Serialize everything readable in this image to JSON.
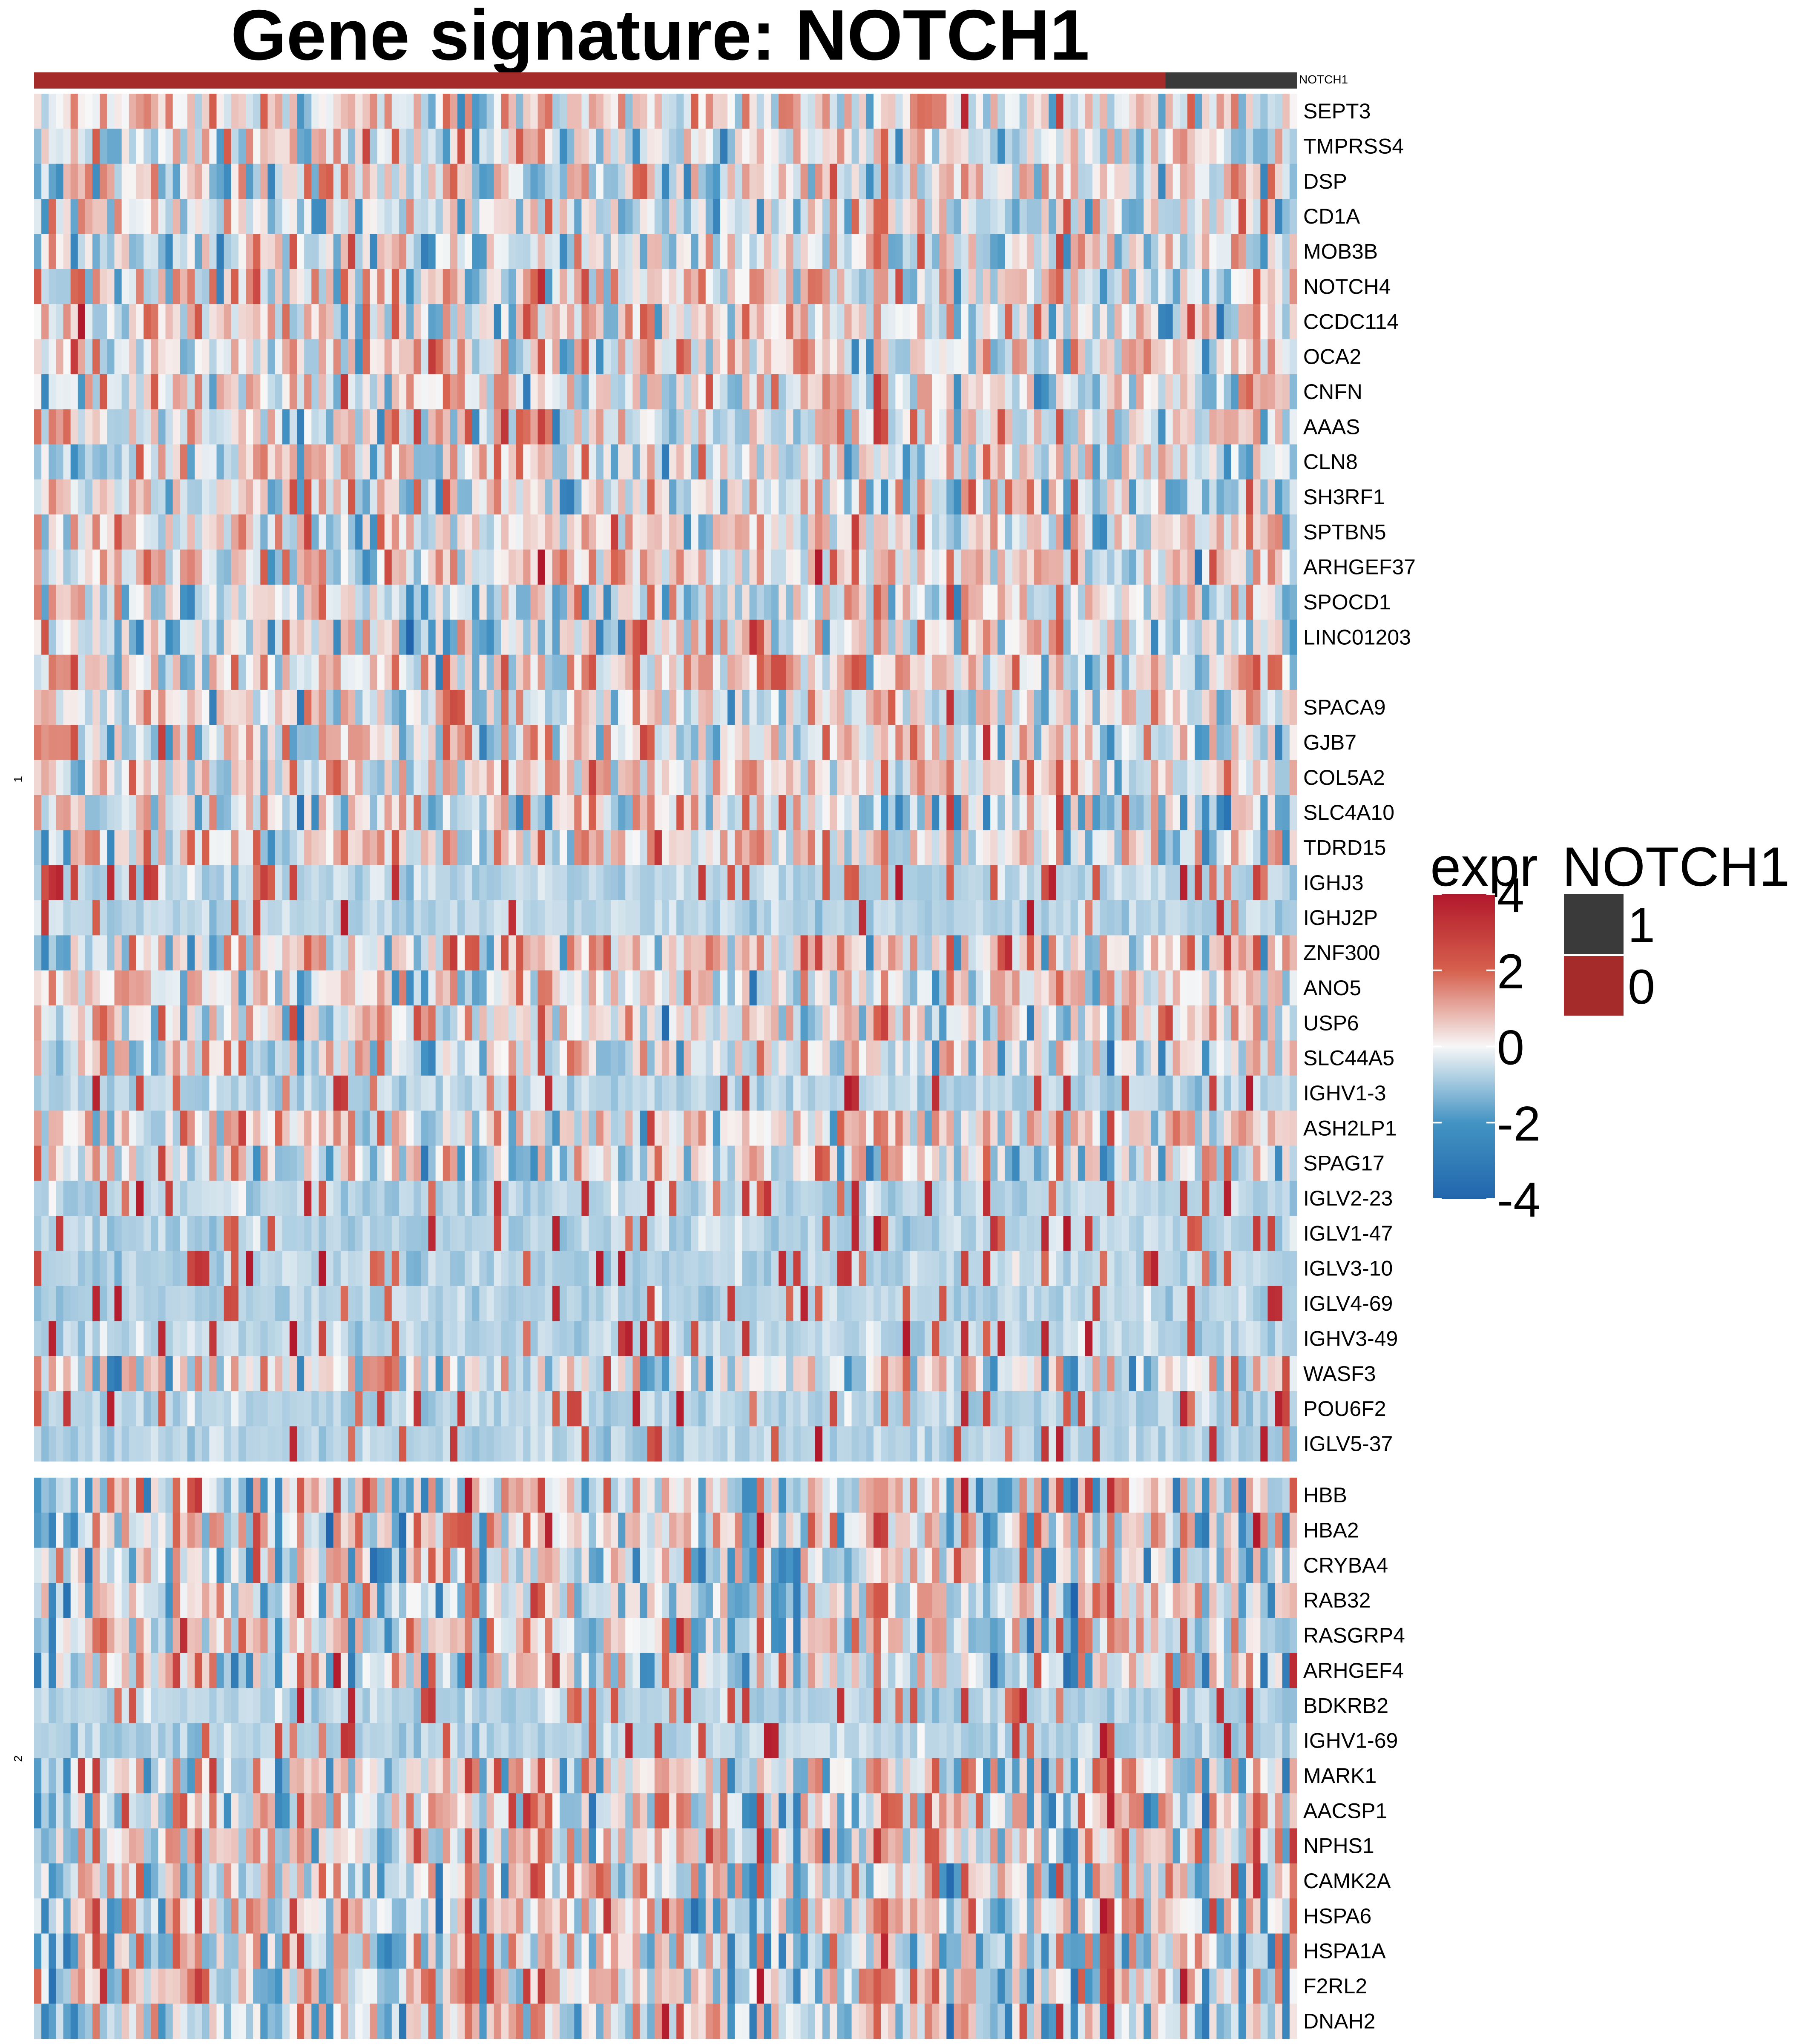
{
  "chart_data": {
    "type": "heatmap",
    "title": "Gene signature: NOTCH1",
    "annotation": {
      "name": "NOTCH1",
      "groups": [
        {
          "value": "0",
          "n_samples": 155,
          "color": "#A52A2A"
        },
        {
          "value": "1",
          "n_samples": 18,
          "color": "#3A3A3A"
        }
      ]
    },
    "row_splits": [
      {
        "label": "1",
        "genes": [
          "SEPT3",
          "TMPRSS4",
          "DSP",
          "CD1A",
          "MOB3B",
          "NOTCH4",
          "CCDC114",
          "OCA2",
          "CNFN",
          "AAAS",
          "CLN8",
          "SH3RF1",
          "SPTBN5",
          "ARHGEF37",
          "SPOCD1",
          "LINC01203",
          "",
          "SPACA9",
          "GJB7",
          "COL5A2",
          "SLC4A10",
          "TDRD15",
          "IGHJ3",
          "IGHJ2P",
          "ZNF300",
          "ANO5",
          "USP6",
          "SLC44A5",
          "IGHV1-3",
          "ASH2LP1",
          "SPAG17",
          "IGLV2-23",
          "IGLV1-47",
          "IGLV3-10",
          "IGLV4-69",
          "IGHV3-49",
          "WASF3",
          "POU6F2",
          "IGLV5-37"
        ]
      },
      {
        "label": "2",
        "genes": [
          "HBB",
          "HBA2",
          "CRYBA4",
          "RAB32",
          "RASGRP4",
          "ARHGEF4",
          "BDKRB2",
          "IGHV1-69",
          "MARK1",
          "AACSP1",
          "NPHS1",
          "CAMK2A",
          "HSPA6",
          "HSPA1A",
          "F2RL2",
          "DNAH2"
        ]
      }
    ],
    "color_scale": {
      "name": "expr",
      "breaks": [
        -4,
        -2,
        0,
        2,
        4
      ],
      "tick_labels": [
        "4",
        "2",
        "0",
        "-2",
        "-4"
      ],
      "colors": [
        "#2166AC",
        "#4393C3",
        "#F7F7F7",
        "#D6604D",
        "#B2182B"
      ]
    },
    "legend_entries": [
      {
        "label": "1",
        "color": "#3A3A3A"
      },
      {
        "label": "0",
        "color": "#A52A2A"
      }
    ]
  }
}
